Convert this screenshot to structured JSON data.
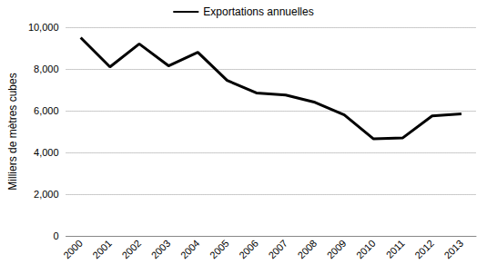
{
  "chart_data": {
    "type": "line",
    "y_label": "Milliers de mètres cubes",
    "categories": [
      "2000",
      "2001",
      "2002",
      "2003",
      "2004",
      "2005",
      "2006",
      "2007",
      "2008",
      "2009",
      "2010",
      "2011",
      "2012",
      "2013"
    ],
    "series": [
      {
        "name": "Exportations annuelles",
        "color": "#000000",
        "values": [
          9500,
          8100,
          9200,
          8150,
          8800,
          7450,
          6850,
          6750,
          6400,
          5800,
          4650,
          4700,
          5750,
          5850
        ]
      }
    ],
    "ylim": [
      0,
      10000
    ],
    "yticks": [
      0,
      {
        "value": 2000,
        "label": "2,000"
      },
      {
        "value": 4000,
        "label": "4,000"
      },
      {
        "value": 6000,
        "label": "6,000"
      },
      {
        "value": 8000,
        "label": "8,000"
      },
      {
        "value": 10000,
        "label": "10,000"
      }
    ],
    "grid": true,
    "legend": "top"
  }
}
